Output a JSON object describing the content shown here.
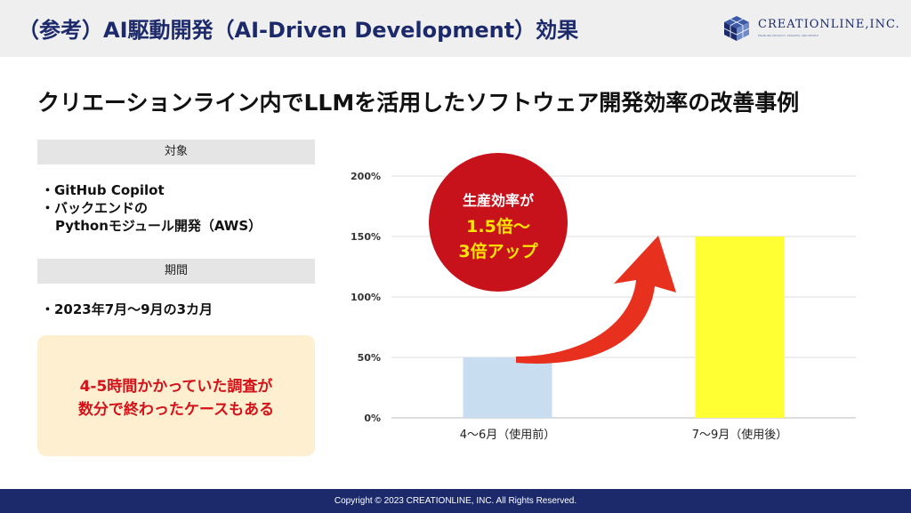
{
  "header": {
    "title": "（参考）AI駆動開発（AI-Driven Development）効果",
    "logo_text": "CREATIONLINE,INC.",
    "logo_tagline": "ENABLING PRODUCT, PROCESS, AND PEOPLE"
  },
  "subtitle": "クリエーションライン内でLLMを活用したソフトウェア開発効率の改善事例",
  "target": {
    "label": "対象",
    "items": [
      "・GitHub Copilot",
      "・バックエンドの",
      "Pythonモジュール開発（AWS）"
    ]
  },
  "period": {
    "label": "期間",
    "items": [
      "・2023年7月～9月の3カ月"
    ]
  },
  "note": {
    "lines": [
      "4-5時間かかっていた調査が",
      "数分で終わったケースもある"
    ]
  },
  "badge": {
    "line1": "生産効率が",
    "line2": "1.5倍～",
    "line3": "3倍アップ"
  },
  "chart_data": {
    "type": "bar",
    "categories": [
      "4～6月（使用前）",
      "7～9月（使用後）"
    ],
    "values": [
      50,
      150
    ],
    "colors": [
      "#c9ddf0",
      "#ffff33"
    ],
    "yticks": [
      "0%",
      "50%",
      "100%",
      "150%",
      "200%"
    ],
    "ylim": [
      0,
      200
    ],
    "grid": true,
    "xlabel": "",
    "ylabel": ""
  },
  "footer": {
    "copyright": "Copyright © 2023 CREATIONLINE, INC. All Rights Reserved."
  }
}
